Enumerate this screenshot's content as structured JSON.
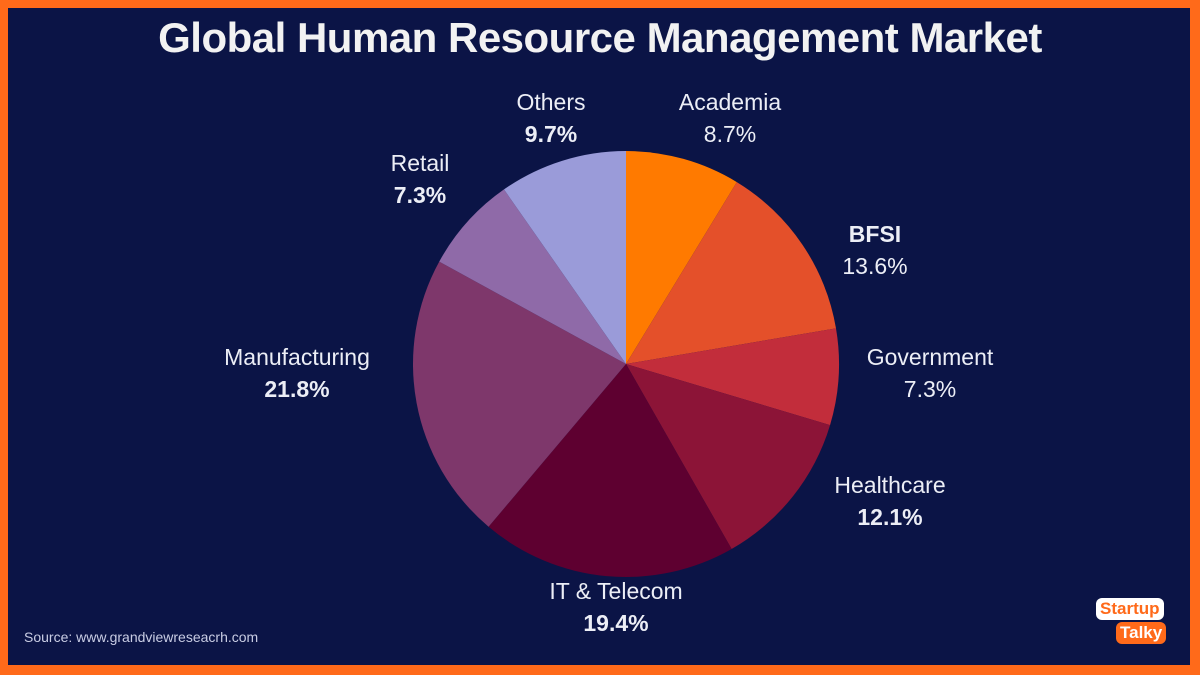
{
  "title": "Global Human Resource Management Market",
  "source": "Source: www.grandviewreseacrh.com",
  "logo": {
    "line1": "Startup",
    "line2": "Talky"
  },
  "colors": {
    "background": "#0b1446",
    "border": "#ff6a1a"
  },
  "chart_data": {
    "type": "pie",
    "title": "Global Human Resource Management Market",
    "unit": "%",
    "start": "top, clockwise",
    "slices": [
      {
        "label": "Academia",
        "value": 8.7,
        "display": "8.7%",
        "color": "#ff7a00"
      },
      {
        "label": "BFSI",
        "value": 13.6,
        "display": "13.6%",
        "color": "#e4502a"
      },
      {
        "label": "Government",
        "value": 7.3,
        "display": "7.3%",
        "color": "#c22d3b"
      },
      {
        "label": "Healthcare",
        "value": 12.1,
        "display": "12.1%",
        "color": "#8c1437"
      },
      {
        "label": "IT & Telecom",
        "value": 19.4,
        "display": "19.4%",
        "color": "#5e0030"
      },
      {
        "label": "Manufacturing",
        "value": 21.8,
        "display": "21.8%",
        "color": "#7e376b"
      },
      {
        "label": "Retail",
        "value": 7.3,
        "display": "7.3%",
        "color": "#8f6aa8"
      },
      {
        "label": "Others",
        "value": 9.7,
        "display": "9.7%",
        "color": "#9a9bd9"
      }
    ]
  }
}
